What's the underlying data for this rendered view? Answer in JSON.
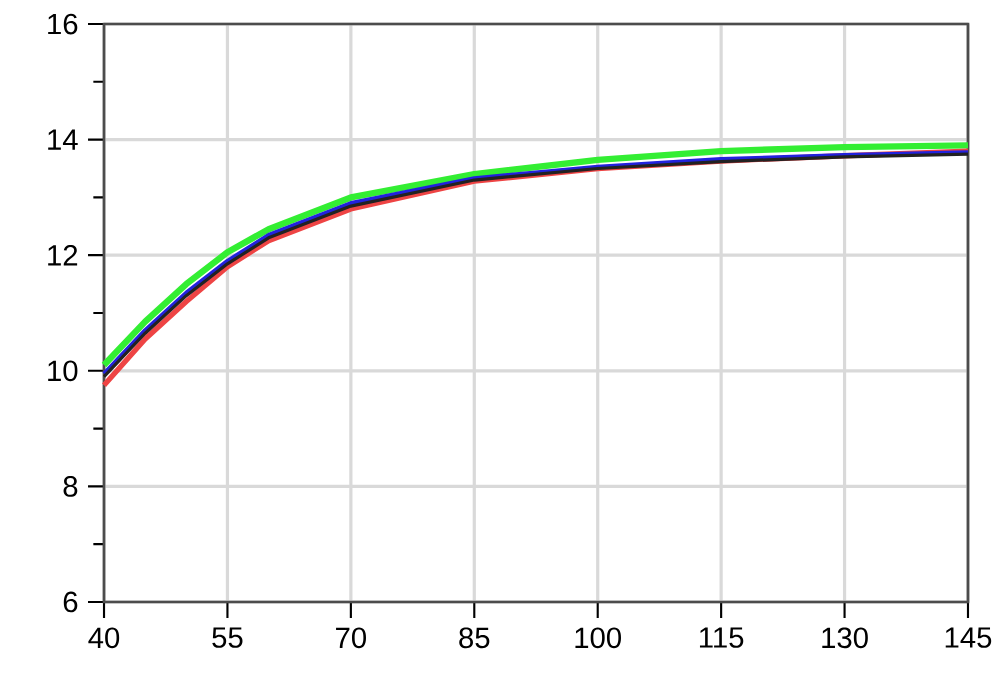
{
  "chart_data": {
    "type": "line",
    "x": [
      40,
      45,
      50,
      55,
      60,
      70,
      85,
      100,
      115,
      130,
      145
    ],
    "series": [
      {
        "color": "#33ee33",
        "values": [
          10.1,
          10.85,
          11.5,
          12.05,
          12.45,
          13.0,
          13.4,
          13.65,
          13.8,
          13.87,
          13.9
        ]
      },
      {
        "color": "#ee4444",
        "values": [
          9.75,
          10.55,
          11.2,
          11.8,
          12.25,
          12.8,
          13.28,
          13.5,
          13.63,
          13.72,
          13.8
        ]
      },
      {
        "color": "#2222dd",
        "values": [
          9.95,
          10.7,
          11.35,
          11.9,
          12.35,
          12.9,
          13.33,
          13.53,
          13.66,
          13.73,
          13.78
        ]
      },
      {
        "color": "#222222",
        "values": [
          9.9,
          10.65,
          11.3,
          11.85,
          12.3,
          12.85,
          13.3,
          13.5,
          13.62,
          13.7,
          13.75
        ]
      }
    ],
    "xlim": [
      40,
      145
    ],
    "xticks": [
      40,
      55,
      70,
      85,
      100,
      115,
      130,
      145
    ],
    "ylim": [
      6,
      16
    ],
    "yticks": [
      6,
      8,
      10,
      12,
      14,
      16
    ],
    "grid": true,
    "marker": "none",
    "line_style": "solid"
  }
}
